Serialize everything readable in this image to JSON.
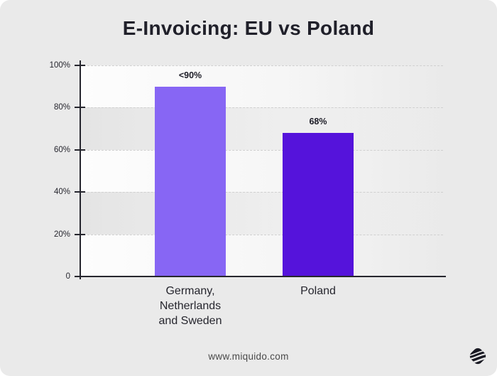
{
  "title": "E-Invoicing: EU vs Poland",
  "footer": {
    "website": "www.miquido.com"
  },
  "logo": {
    "name": "miquido-logo",
    "color": "#191923"
  },
  "colors": {
    "background": "#eaeaea",
    "bar_eu": "#8766f4",
    "bar_poland": "#5513db",
    "axis": "#26262e",
    "title_text": "#20202a",
    "gridline": "#d0d0d0",
    "footer_text": "#4a4a4a"
  },
  "chart_data": {
    "type": "bar",
    "title": "E-Invoicing: EU vs Poland",
    "categories": [
      "Germany, Netherlands and Sweden",
      "Poland"
    ],
    "category_lines": [
      [
        "Germany,",
        "Netherlands",
        "and Sweden"
      ],
      [
        "Poland"
      ]
    ],
    "values": [
      90,
      68
    ],
    "value_labels": [
      "<90%",
      "68%"
    ],
    "bar_colors": [
      "#8766f4",
      "#5513db"
    ],
    "ylim": [
      0,
      100
    ],
    "yticks": [
      {
        "value": 100,
        "label": "100%"
      },
      {
        "value": 80,
        "label": "80%"
      },
      {
        "value": 60,
        "label": "60%"
      },
      {
        "value": 40,
        "label": "40%"
      },
      {
        "value": 20,
        "label": "20%"
      },
      {
        "value": 0,
        "label": "0"
      }
    ],
    "xlabel": "",
    "ylabel": "",
    "grid": "horizontal-dashed",
    "legend": "none"
  }
}
